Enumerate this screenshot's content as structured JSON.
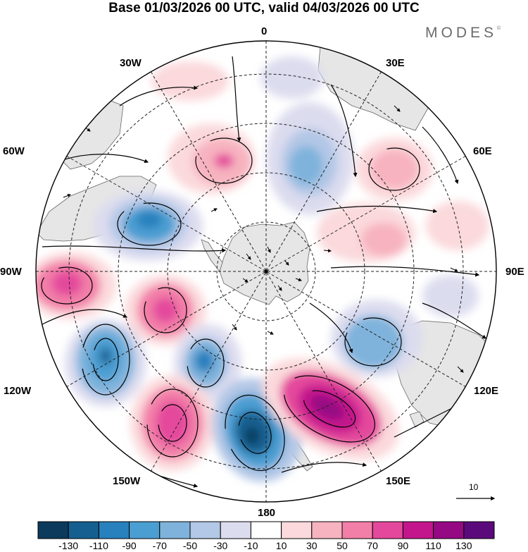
{
  "title": "Base 01/03/2026 00 UTC, valid 04/03/2026 00 UTC",
  "brand": "MODES",
  "brand_mark": "©",
  "meridians": {
    "m0": "0",
    "m30e": "30E",
    "m60e": "60E",
    "m90e": "90E",
    "m120e": "120E",
    "m150e": "150E",
    "m180": "180",
    "m150w": "150W",
    "m120w": "120W",
    "m90w": "90W",
    "m60w": "60W",
    "m30w": "30W"
  },
  "vector_reference": "10",
  "colorbar": {
    "colors": [
      "#0b3a5c",
      "#155f90",
      "#2880bd",
      "#4b9ed2",
      "#7fb3dc",
      "#b3c7e6",
      "#dcdcef",
      "#ffffff",
      "#fbd9dc",
      "#f7b3bf",
      "#f27fa8",
      "#e4489c",
      "#c4168c",
      "#950983",
      "#5b0a7b"
    ],
    "tick_labels": [
      "-130",
      "-110",
      "-90",
      "-70",
      "-50",
      "-30",
      "-10",
      "10",
      "30",
      "50",
      "70",
      "90",
      "110",
      "130"
    ]
  },
  "colors": {
    "land": "#e8e8e8",
    "grid": "#222222",
    "coast": "#555555"
  }
}
